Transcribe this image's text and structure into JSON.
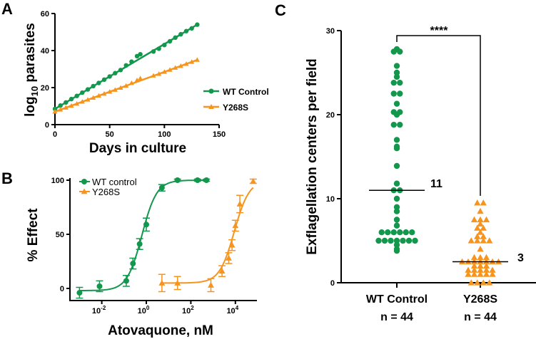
{
  "colors": {
    "wt": "#12974d",
    "mut": "#f7941d",
    "axis": "#000000"
  },
  "chart_data": [
    {
      "panel": "A",
      "type": "scatter",
      "xlabel": "Days in culture",
      "ylabel_parts": [
        "log",
        "10",
        " parasites"
      ],
      "xlim": [
        0,
        150
      ],
      "ylim": [
        0,
        60
      ],
      "xticks": [
        "0",
        "50",
        "100",
        "150"
      ],
      "yticks": [
        "0",
        "20",
        "40",
        "60"
      ],
      "legend": "right",
      "series": [
        {
          "name": "WT Control",
          "color": "#12974d",
          "marker": "circle",
          "x": [
            0,
            5,
            10,
            15,
            20,
            25,
            30,
            35,
            40,
            45,
            50,
            55,
            60,
            65,
            70,
            75,
            78,
            90,
            95,
            100,
            105,
            110,
            115,
            120,
            125,
            130
          ],
          "y": [
            8.5,
            10.3,
            12,
            13.8,
            15.5,
            17.3,
            19,
            20.8,
            22.5,
            24.3,
            26,
            27.8,
            29.5,
            32,
            34,
            37,
            38,
            39.5,
            41,
            43,
            45,
            47,
            48.8,
            50.5,
            52,
            54
          ],
          "fit": {
            "intercept": 8.5,
            "slope": 0.35
          }
        },
        {
          "name": "Y268S",
          "color": "#f7941d",
          "marker": "triangle",
          "x": [
            0,
            5,
            10,
            15,
            20,
            25,
            30,
            35,
            40,
            45,
            50,
            55,
            60,
            65,
            70,
            75,
            78,
            90,
            95,
            100,
            105,
            110,
            115,
            120,
            125,
            130
          ],
          "y": [
            7,
            8.1,
            9.2,
            10.2,
            11.3,
            12.4,
            13.5,
            14.5,
            15.6,
            16.7,
            17.8,
            18.8,
            19.9,
            21,
            22.5,
            24,
            25,
            26.5,
            27.4,
            28.5,
            29.6,
            30.7,
            31.7,
            32.8,
            33.9,
            35
          ],
          "fit": {
            "intercept": 7,
            "slope": 0.215
          }
        }
      ]
    },
    {
      "panel": "B",
      "type": "scatter",
      "xlabel": "Atovaquone, nM",
      "ylabel": "% Effect",
      "xscale": "log10",
      "xlim_log10": [
        -3.4,
        5
      ],
      "ylim": [
        -10,
        100
      ],
      "xticks": [
        {
          "base": "10",
          "exp": "-2",
          "log": -2
        },
        {
          "base": "10",
          "exp": "0",
          "log": 0
        },
        {
          "base": "10",
          "exp": "2",
          "log": 2
        },
        {
          "base": "10",
          "exp": "4",
          "log": 4
        }
      ],
      "yticks": [
        "0",
        "50",
        "100"
      ],
      "legend": "top-left",
      "series": [
        {
          "name": "WT control",
          "color": "#12974d",
          "marker": "circle",
          "log_x": [
            -3,
            -2.1,
            -0.9,
            -0.6,
            -0.3,
            0,
            0.7,
            1.4,
            2.3,
            2.7
          ],
          "y": [
            -4,
            2,
            7,
            23,
            41,
            59,
            93,
            100,
            100,
            100
          ],
          "err": [
            5,
            5,
            5,
            5,
            5,
            6,
            3,
            1,
            1,
            1
          ],
          "fit": {
            "bottom": -2,
            "top": 100,
            "logEC50": -0.2,
            "hill": 1.3
          }
        },
        {
          "name": "Y268S",
          "color": "#f7941d",
          "marker": "triangle",
          "log_x": [
            0.7,
            1.4,
            2.9,
            3.4,
            3.7,
            3.85,
            4.0,
            4.2,
            4.8
          ],
          "y": [
            5,
            5,
            3,
            16,
            28,
            40,
            58,
            78,
            99
          ],
          "err": [
            8,
            6,
            6,
            5,
            5,
            5,
            5,
            8,
            2
          ],
          "fit": {
            "bottom": 5,
            "top": 100,
            "logEC50": 3.95,
            "hill": 1.3
          }
        }
      ]
    },
    {
      "panel": "C",
      "type": "scatter",
      "ylabel": "Exflagellation centers per field",
      "ylim": [
        0,
        30
      ],
      "yticks": [
        "0",
        "10",
        "20",
        "30"
      ],
      "categories": [
        "WT Control",
        "Y268S"
      ],
      "n_labels": [
        "n = 44",
        "n = 44"
      ],
      "significance": "****",
      "series": [
        {
          "name": "WT Control",
          "color": "#12974d",
          "marker": "circle",
          "median": 11,
          "median_label": "11",
          "values": [
            27.8,
            27.5,
            27.5,
            25.8,
            25,
            24.5,
            23.8,
            23.8,
            22.5,
            22.5,
            21.3,
            20.3,
            20.3,
            20,
            18.8,
            18.8,
            17,
            16.2,
            16,
            13.9,
            11.8,
            11,
            11,
            10,
            9,
            8.5,
            7.5,
            6.8,
            6,
            6,
            6,
            6,
            6,
            6,
            5,
            5,
            5,
            5,
            5,
            5,
            5,
            4.5,
            4,
            3.8
          ]
        },
        {
          "name": "Y268S",
          "color": "#f7941d",
          "marker": "triangle",
          "median": 2.5,
          "median_label": "3",
          "values": [
            9.5,
            9.5,
            8.5,
            7.5,
            7.5,
            7.5,
            7,
            6.5,
            6.5,
            6,
            5.5,
            5.5,
            5,
            5,
            5,
            5,
            4,
            3,
            3,
            3,
            2.5,
            2.5,
            2.5,
            2.5,
            2.5,
            2.5,
            2.5,
            2,
            2,
            2,
            1.5,
            1.5,
            1.5,
            1.5,
            1.5,
            1,
            1,
            1,
            1,
            1,
            0,
            0,
            0,
            0
          ]
        }
      ]
    }
  ]
}
